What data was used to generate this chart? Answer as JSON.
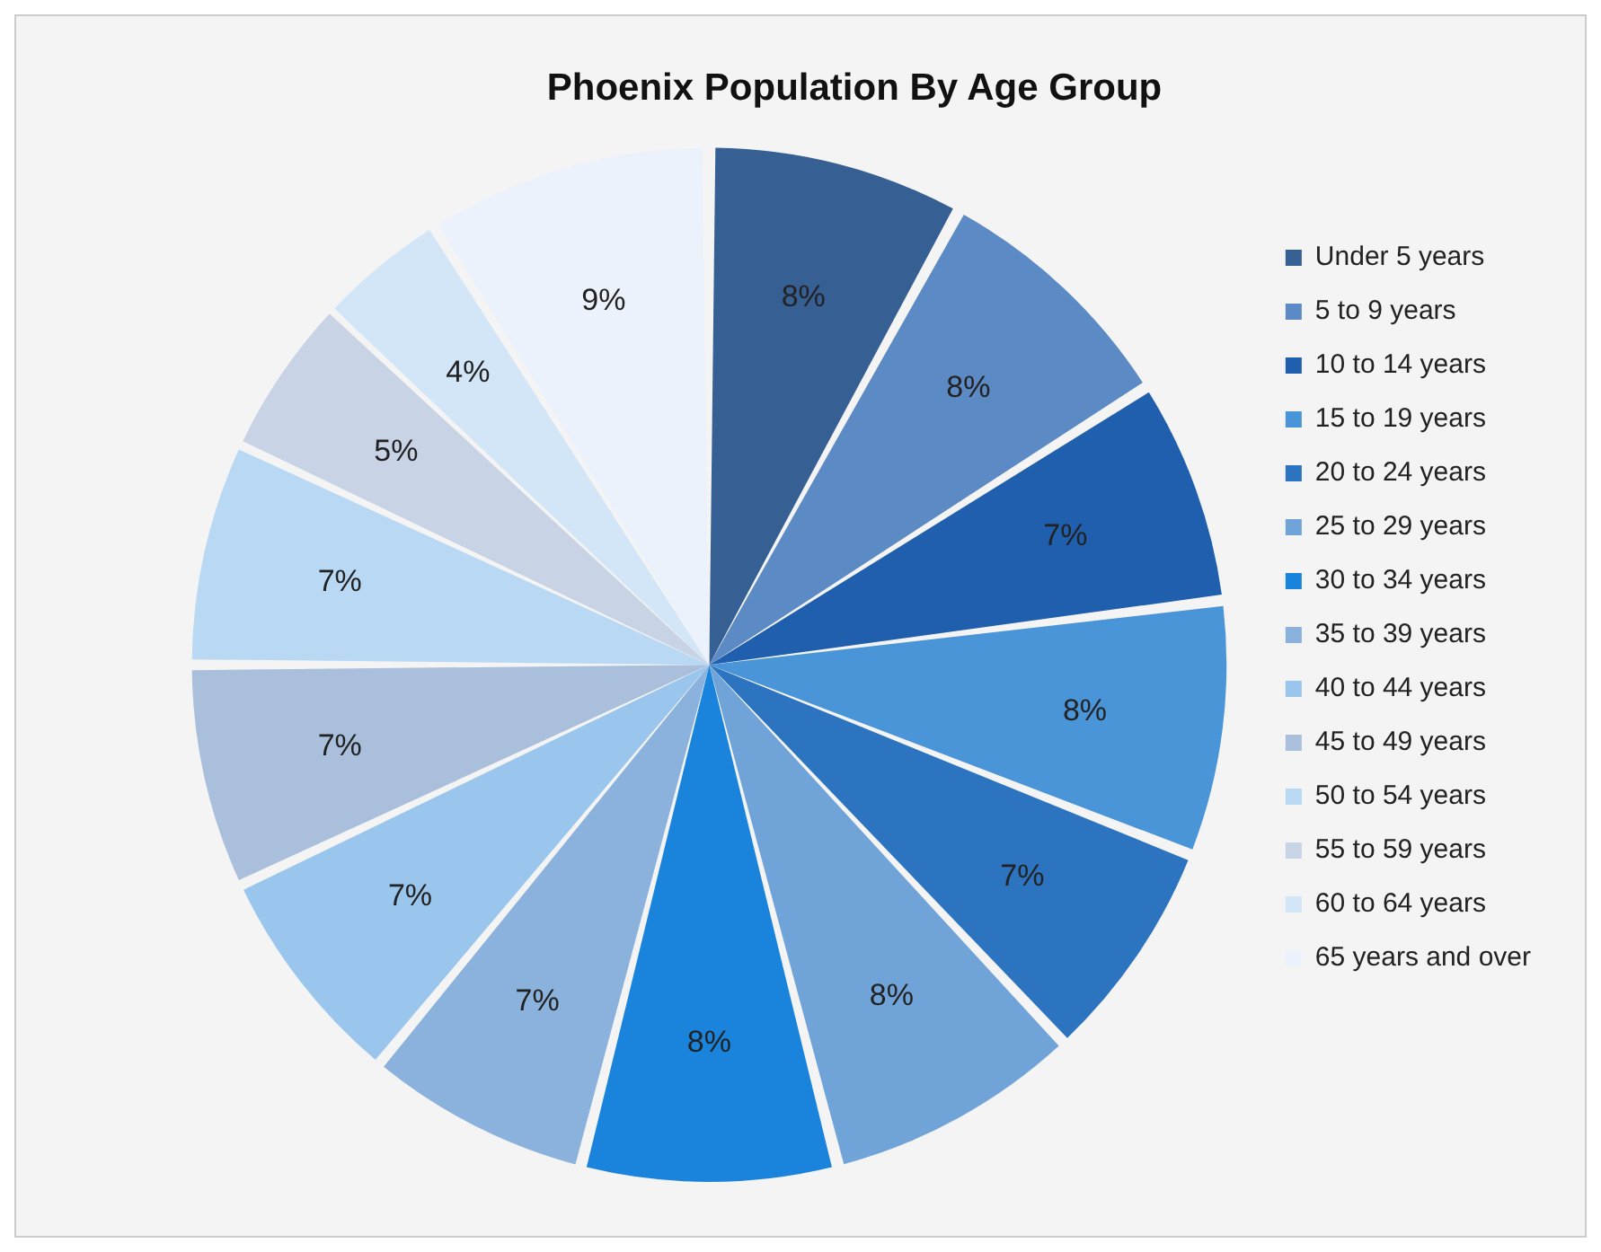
{
  "chart_data": {
    "type": "pie",
    "title": "Phoenix Population By Age Group",
    "categories": [
      "Under 5 years",
      "5 to 9 years",
      "10 to 14 years",
      "15 to 19 years",
      "20 to 24 years",
      "25 to 29 years",
      "30 to 34 years",
      "35 to 39 years",
      "40 to 44 years",
      "45 to 49 years",
      "50 to 54 years",
      "55 to 59 years",
      "60 to 64 years",
      "65 years and over"
    ],
    "values": [
      8,
      8,
      7,
      8,
      7,
      8,
      8,
      7,
      7,
      7,
      7,
      5,
      4,
      9
    ],
    "value_labels": [
      "8%",
      "8%",
      "7%",
      "8%",
      "7%",
      "8%",
      "8%",
      "7%",
      "7%",
      "7%",
      "7%",
      "5%",
      "4%",
      "9%"
    ],
    "colors": [
      "#365f94",
      "#5b8ac4",
      "#1f5fae",
      "#4a94d8",
      "#2c74c0",
      "#70a4d8",
      "#1a84dc",
      "#8ab2dc",
      "#9ac6ee",
      "#a9bfdc",
      "#b8d8f4",
      "#c8d3e6",
      "#d2e6f8",
      "#ecf2fb"
    ],
    "legend": "right"
  }
}
